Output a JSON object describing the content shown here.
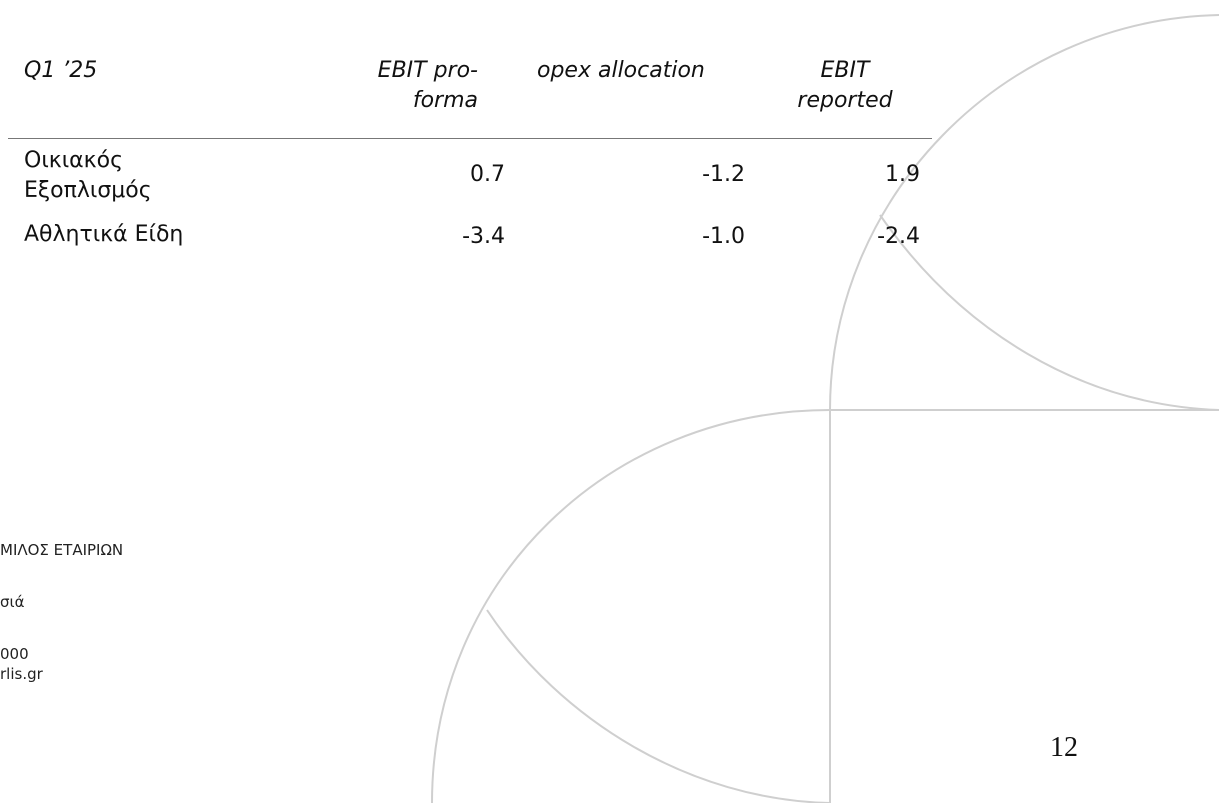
{
  "table": {
    "header": [
      "Q1 ’25",
      "EBIT pro-forma",
      "opex allocation",
      "EBIT reported"
    ],
    "rows": [
      [
        "Οικιακός Εξοπλισμός",
        "0.7",
        "-1.2",
        "1.9"
      ],
      [
        "Αθλητικά Είδη",
        "-3.4",
        "-1.0",
        "-2.4"
      ]
    ]
  },
  "footer": {
    "lines": [
      "ΜΙΛΟΣ ΕΤΑΙΡΙΩΝ",
      "σιά",
      "000",
      "rlis.gr"
    ],
    "page_number": "12"
  }
}
